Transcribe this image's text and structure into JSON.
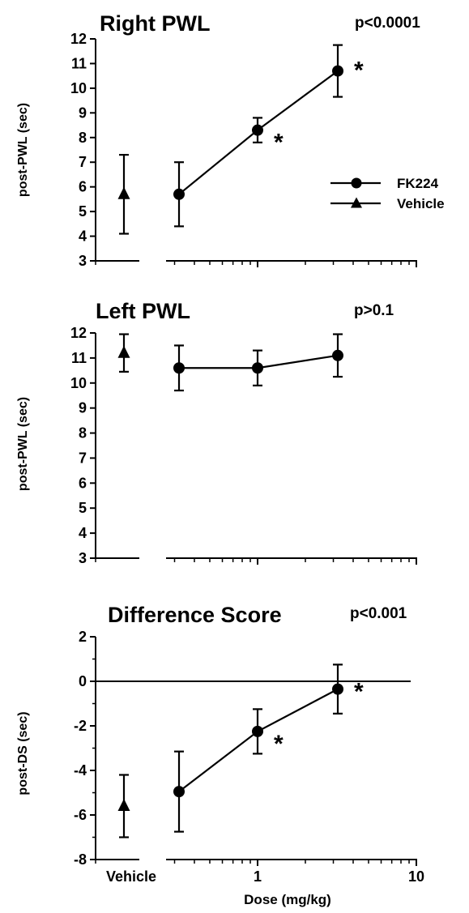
{
  "chart_data": [
    {
      "panel": "right",
      "type": "line",
      "title": "Right PWL",
      "p_value": "p<0.0001",
      "ylabel": "post-PWL  (sec)",
      "ylim": [
        3,
        12
      ],
      "yticks": [
        3,
        4,
        5,
        6,
        7,
        8,
        9,
        10,
        11,
        12
      ],
      "xscale": "log",
      "series": [
        {
          "name": "FK224",
          "marker": "circle",
          "x": [
            0.32,
            1,
            3.2
          ],
          "y": [
            5.7,
            8.3,
            10.7
          ],
          "err": [
            1.3,
            0.5,
            1.05
          ],
          "significant": [
            false,
            true,
            true
          ]
        },
        {
          "name": "Vehicle",
          "marker": "triangle",
          "x": [
            "Vehicle"
          ],
          "y": [
            5.7
          ],
          "err": [
            1.6
          ],
          "significant": [
            false
          ]
        }
      ],
      "legend": [
        "FK224",
        "Vehicle"
      ],
      "legend_position": "right"
    },
    {
      "panel": "left",
      "type": "line",
      "title": "Left PWL",
      "p_value": "p>0.1",
      "ylabel": "post-PWL  (sec)",
      "ylim": [
        3,
        12
      ],
      "yticks": [
        3,
        4,
        5,
        6,
        7,
        8,
        9,
        10,
        11,
        12
      ],
      "xscale": "log",
      "series": [
        {
          "name": "FK224",
          "marker": "circle",
          "x": [
            0.32,
            1,
            3.2
          ],
          "y": [
            10.6,
            10.6,
            11.1
          ],
          "err": [
            0.9,
            0.7,
            0.85
          ],
          "significant": [
            false,
            false,
            false
          ]
        },
        {
          "name": "Vehicle",
          "marker": "triangle",
          "x": [
            "Vehicle"
          ],
          "y": [
            11.2
          ],
          "err": [
            0.75
          ],
          "significant": [
            false
          ]
        }
      ]
    },
    {
      "panel": "difference",
      "type": "line",
      "title": "Difference Score",
      "p_value": "p<0.001",
      "ylabel": "post-DS  (sec)",
      "xlabel": "Dose  (mg/kg)",
      "ylim": [
        -8,
        2
      ],
      "yticks": [
        -8,
        -6,
        -4,
        -2,
        0,
        2
      ],
      "xscale": "log",
      "xticklabels": [
        "Vehicle",
        "1",
        "10"
      ],
      "reference_line": 0,
      "series": [
        {
          "name": "FK224",
          "marker": "circle",
          "x": [
            0.32,
            1,
            3.2
          ],
          "y": [
            -4.95,
            -2.25,
            -0.35
          ],
          "err": [
            1.8,
            1.0,
            1.1
          ],
          "significant": [
            false,
            true,
            true
          ]
        },
        {
          "name": "Vehicle",
          "marker": "triangle",
          "x": [
            "Vehicle"
          ],
          "y": [
            -5.6
          ],
          "err": [
            1.4
          ],
          "significant": [
            false
          ]
        }
      ]
    }
  ],
  "significance_marker": "*"
}
